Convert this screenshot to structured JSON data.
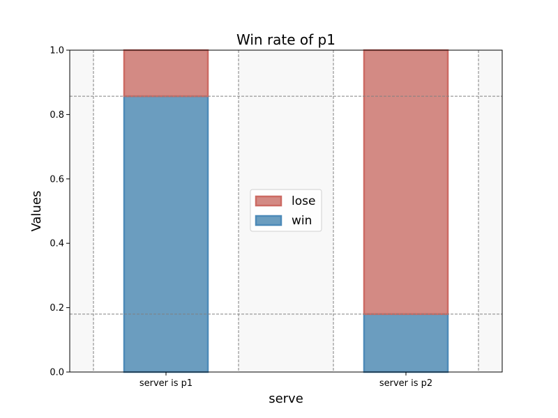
{
  "chart_data": {
    "type": "bar",
    "stacked": true,
    "title": "Win rate of p1",
    "xlabel": "serve",
    "ylabel": "Values",
    "categories": [
      "server is p1",
      "server is p2"
    ],
    "series": [
      {
        "name": "win",
        "values": [
          0.857,
          0.18
        ],
        "color": "#6b9dbf",
        "edge_color": "#4d8ab8"
      },
      {
        "name": "lose",
        "values": [
          0.143,
          0.82
        ],
        "color": "#d38a84",
        "edge_color": "#cc6a63"
      }
    ],
    "ylim": [
      0,
      1
    ],
    "yticks": [
      "0.0",
      "0.2",
      "0.4",
      "0.6",
      "0.8",
      "1.0"
    ],
    "grid": true,
    "legend_position": "center",
    "legend_order": [
      "lose",
      "win"
    ],
    "background": "#f8f8f8"
  }
}
